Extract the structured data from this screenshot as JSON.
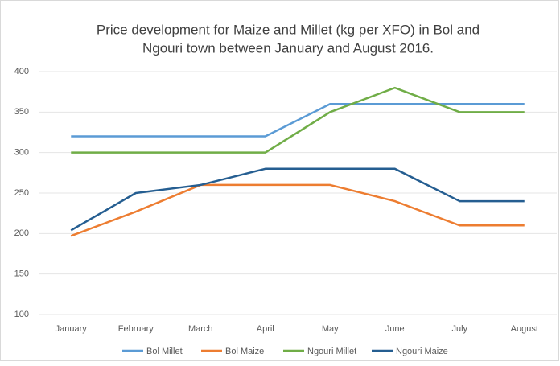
{
  "chart_data": {
    "type": "line",
    "title": [
      "Price development for Maize and Millet (kg per XFO) in Bol and",
      "Ngouri town between January and August 2016."
    ],
    "categories": [
      "January",
      "February",
      "March",
      "April",
      "May",
      "June",
      "July",
      "August"
    ],
    "series": [
      {
        "name": "Bol Millet",
        "color": "#5b9bd5",
        "values": [
          320,
          320,
          320,
          320,
          360,
          360,
          360,
          360
        ]
      },
      {
        "name": "Bol Maize",
        "color": "#ed7d31",
        "values": [
          197,
          227,
          260,
          260,
          260,
          240,
          210,
          210
        ]
      },
      {
        "name": "Ngouri Millet",
        "color": "#70ad47",
        "values": [
          300,
          300,
          300,
          300,
          350,
          380,
          350,
          350
        ]
      },
      {
        "name": "Ngouri Maize",
        "color": "#255e91",
        "values": [
          204,
          250,
          260,
          280,
          280,
          280,
          240,
          240
        ]
      }
    ],
    "ylim": [
      100,
      400
    ],
    "yticks": [
      100,
      150,
      200,
      250,
      300,
      350,
      400
    ],
    "grid": true,
    "legend": "bottom"
  }
}
